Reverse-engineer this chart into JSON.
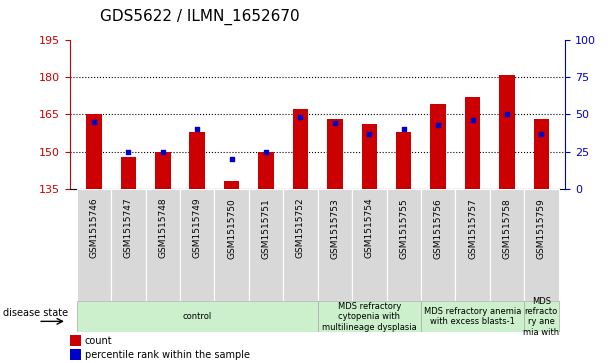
{
  "title": "GDS5622 / ILMN_1652670",
  "samples": [
    "GSM1515746",
    "GSM1515747",
    "GSM1515748",
    "GSM1515749",
    "GSM1515750",
    "GSM1515751",
    "GSM1515752",
    "GSM1515753",
    "GSM1515754",
    "GSM1515755",
    "GSM1515756",
    "GSM1515757",
    "GSM1515758",
    "GSM1515759"
  ],
  "counts": [
    165,
    148,
    150,
    158,
    138,
    150,
    167,
    163,
    161,
    158,
    169,
    172,
    181,
    163
  ],
  "percentiles": [
    45,
    25,
    25,
    40,
    20,
    25,
    48,
    44,
    37,
    40,
    43,
    46,
    50,
    37
  ],
  "ylim_left": [
    135,
    195
  ],
  "ylim_right": [
    0,
    100
  ],
  "left_ticks": [
    135,
    150,
    165,
    180,
    195
  ],
  "right_ticks": [
    0,
    25,
    50,
    75,
    100
  ],
  "bar_color": "#cc0000",
  "dot_color": "#0000cc",
  "background_color": "#ffffff",
  "gridline_ticks": [
    150,
    165,
    180
  ],
  "group_defs": [
    {
      "start": 0,
      "end": 7,
      "label": "control",
      "color": "#ccf0cc"
    },
    {
      "start": 7,
      "end": 10,
      "label": "MDS refractory\ncytopenia with\nmultilineage dysplasia",
      "color": "#ccf0cc"
    },
    {
      "start": 10,
      "end": 13,
      "label": "MDS refractory anemia\nwith excess blasts-1",
      "color": "#ccf0cc"
    },
    {
      "start": 13,
      "end": 14,
      "label": "MDS\nrefracto\nry ane\nmia with",
      "color": "#ccf0cc"
    }
  ],
  "legend": [
    {
      "label": "count",
      "color": "#cc0000"
    },
    {
      "label": "percentile rank within the sample",
      "color": "#0000cc"
    }
  ],
  "disease_state_label": "disease state",
  "title_fontsize": 11,
  "tick_fontsize": 8,
  "xlabel_fontsize": 7,
  "bar_width": 0.45
}
